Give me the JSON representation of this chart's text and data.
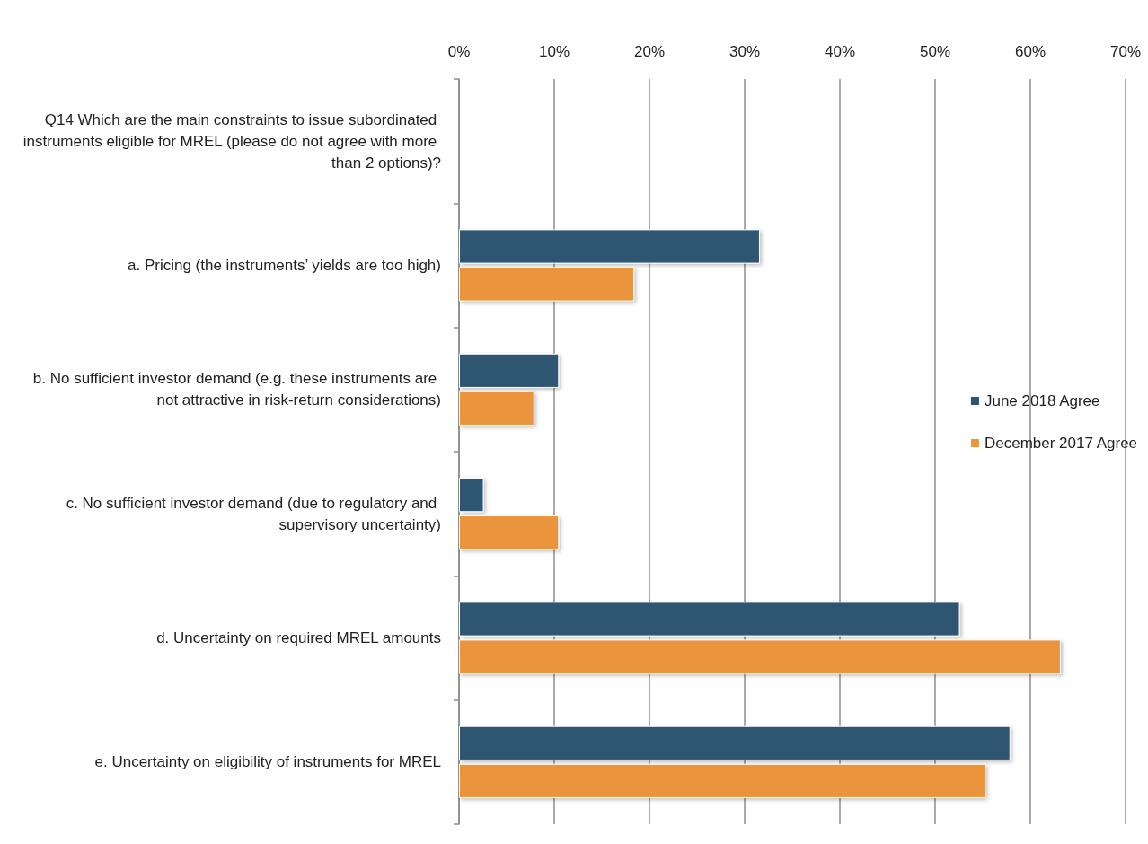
{
  "chart_data": {
    "type": "bar",
    "orientation": "horizontal",
    "categories": [
      "Q14 Which are the main constraints to issue subordinated instruments eligible for MREL (please do not agree with more than 2 options)?",
      "a. Pricing (the instruments’ yields are too high)",
      "b. No sufficient investor demand (e.g. these instruments are not attractive in risk-return considerations)",
      "c. No sufficient investor demand (due to regulatory and supervisory uncertainty)",
      "d. Uncertainty on required MREL amounts",
      "e. Uncertainty on eligibility of instruments for MREL"
    ],
    "series": [
      {
        "name": "June 2018 Agree",
        "color": "#2e5472",
        "values": [
          null,
          31.6,
          10.5,
          2.6,
          52.6,
          57.9
        ]
      },
      {
        "name": "December 2017 Agree",
        "color": "#ea943c",
        "values": [
          null,
          18.4,
          7.9,
          10.5,
          63.2,
          55.3
        ]
      }
    ],
    "xlim": [
      0,
      70
    ],
    "xticks": [
      {
        "value": 0,
        "label": "0%"
      },
      {
        "value": 10,
        "label": "10%"
      },
      {
        "value": 20,
        "label": "20%"
      },
      {
        "value": 30,
        "label": "30%"
      },
      {
        "value": 40,
        "label": "40%"
      },
      {
        "value": 50,
        "label": "50%"
      },
      {
        "value": 60,
        "label": "60%"
      },
      {
        "value": 70,
        "label": "70%"
      }
    ],
    "grid": "x",
    "legend": "right"
  }
}
